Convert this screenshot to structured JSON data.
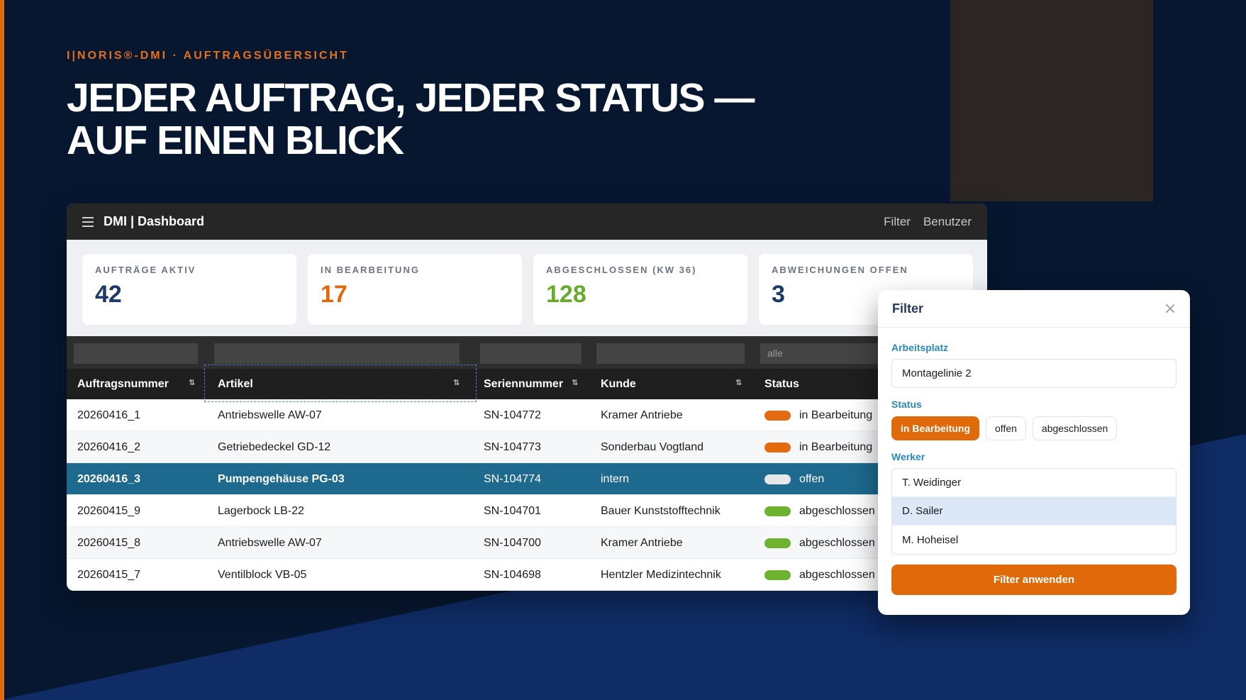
{
  "colors": {
    "background": "#071730",
    "accent_orange": "#e06a0a",
    "selected_row": "#1e6a8f",
    "status_in_progress": "#e46a12",
    "status_open": "#e6e7e9",
    "status_done": "#6db32f",
    "kpi_blue": "#1b3a6b",
    "kpi_orange": "#e06a0a",
    "kpi_green": "#6aaa2a"
  },
  "hero": {
    "eyebrow": "I|NORIS®-DMI · AUFTRAGSÜBERSICHT",
    "headline_line1": "JEDER AUFTRAG, JEDER STATUS —",
    "headline_line2": "AUF EINEN BLICK"
  },
  "app": {
    "menu_icon": "hamburger-menu-icon",
    "title": "DMI | Dashboard",
    "nav": {
      "filter": "Filter",
      "users": "Benutzer"
    }
  },
  "kpis": [
    {
      "label": "AUFTRÄGE AKTIV",
      "value": "42"
    },
    {
      "label": "IN BEARBEITUNG",
      "value": "17"
    },
    {
      "label": "ABGESCHLOSSEN (KW 36)",
      "value": "128"
    },
    {
      "label": "ABWEICHUNGEN OFFEN",
      "value": "3"
    }
  ],
  "table": {
    "filters": {
      "status": "alle"
    },
    "sort_icon": "sort-icon",
    "columns": [
      "Auftragsnummer",
      "Artikel",
      "Seriennummer",
      "Kunde",
      "Status"
    ],
    "rows": [
      {
        "order": "20260416_1",
        "article": "Antriebswelle AW-07",
        "serial": "SN-104772",
        "customer": "Kramer Antriebe",
        "status": "in Bearbeitung",
        "state": "progress"
      },
      {
        "order": "20260416_2",
        "article": "Getriebedeckel GD-12",
        "serial": "SN-104773",
        "customer": "Sonderbau Vogtland",
        "status": "in Bearbeitung",
        "state": "progress"
      },
      {
        "order": "20260416_3",
        "article": "Pumpengehäuse PG-03",
        "serial": "SN-104774",
        "customer": "intern",
        "status": "offen",
        "state": "open"
      },
      {
        "order": "20260415_9",
        "article": "Lagerbock LB-22",
        "serial": "SN-104701",
        "customer": "Bauer Kunststofftechnik",
        "status": "abgeschlossen",
        "state": "done"
      },
      {
        "order": "20260415_8",
        "article": "Antriebswelle AW-07",
        "serial": "SN-104700",
        "customer": "Kramer Antriebe",
        "status": "abgeschlossen",
        "state": "done"
      },
      {
        "order": "20260415_7",
        "article": "Ventilblock VB-05",
        "serial": "SN-104698",
        "customer": "Hentzler Medizintechnik",
        "status": "abgeschlossen",
        "state": "done"
      }
    ]
  },
  "filter_panel": {
    "title": "Filter",
    "close_icon": "close-icon",
    "workplace_label": "Arbeitsplatz",
    "workplace_value": "Montagelinie 2",
    "status_label": "Status",
    "status_options": [
      "in Bearbeitung",
      "offen",
      "abgeschlossen"
    ],
    "status_selected": "in Bearbeitung",
    "worker_label": "Werker",
    "workers": [
      "T. Weidinger",
      "D. Sailer",
      "M. Hoheisel"
    ],
    "worker_selected": "D. Sailer",
    "apply_label": "Filter anwenden"
  }
}
